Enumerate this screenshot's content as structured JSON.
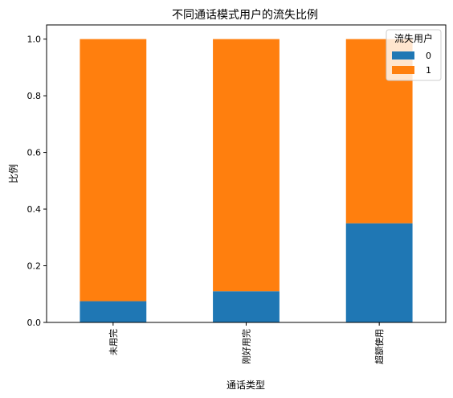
{
  "chart_data": {
    "type": "bar",
    "stacked": true,
    "title": "不同通话模式用户的流失比例",
    "xlabel": "通话类型",
    "ylabel": "比例",
    "categories": [
      "未用完",
      "刚好用完",
      "超额使用"
    ],
    "series": [
      {
        "name": "0",
        "color": "#1f77b4",
        "values": [
          0.075,
          0.11,
          0.35
        ]
      },
      {
        "name": "1",
        "color": "#ff7f0e",
        "values": [
          0.925,
          0.89,
          0.65
        ]
      }
    ],
    "ylim": [
      0,
      1.05
    ],
    "yticks": [
      "0.0",
      "0.2",
      "0.4",
      "0.6",
      "0.8",
      "1.0"
    ],
    "grid": false,
    "legend": {
      "title": "流失用户",
      "placement": "top-right"
    }
  }
}
